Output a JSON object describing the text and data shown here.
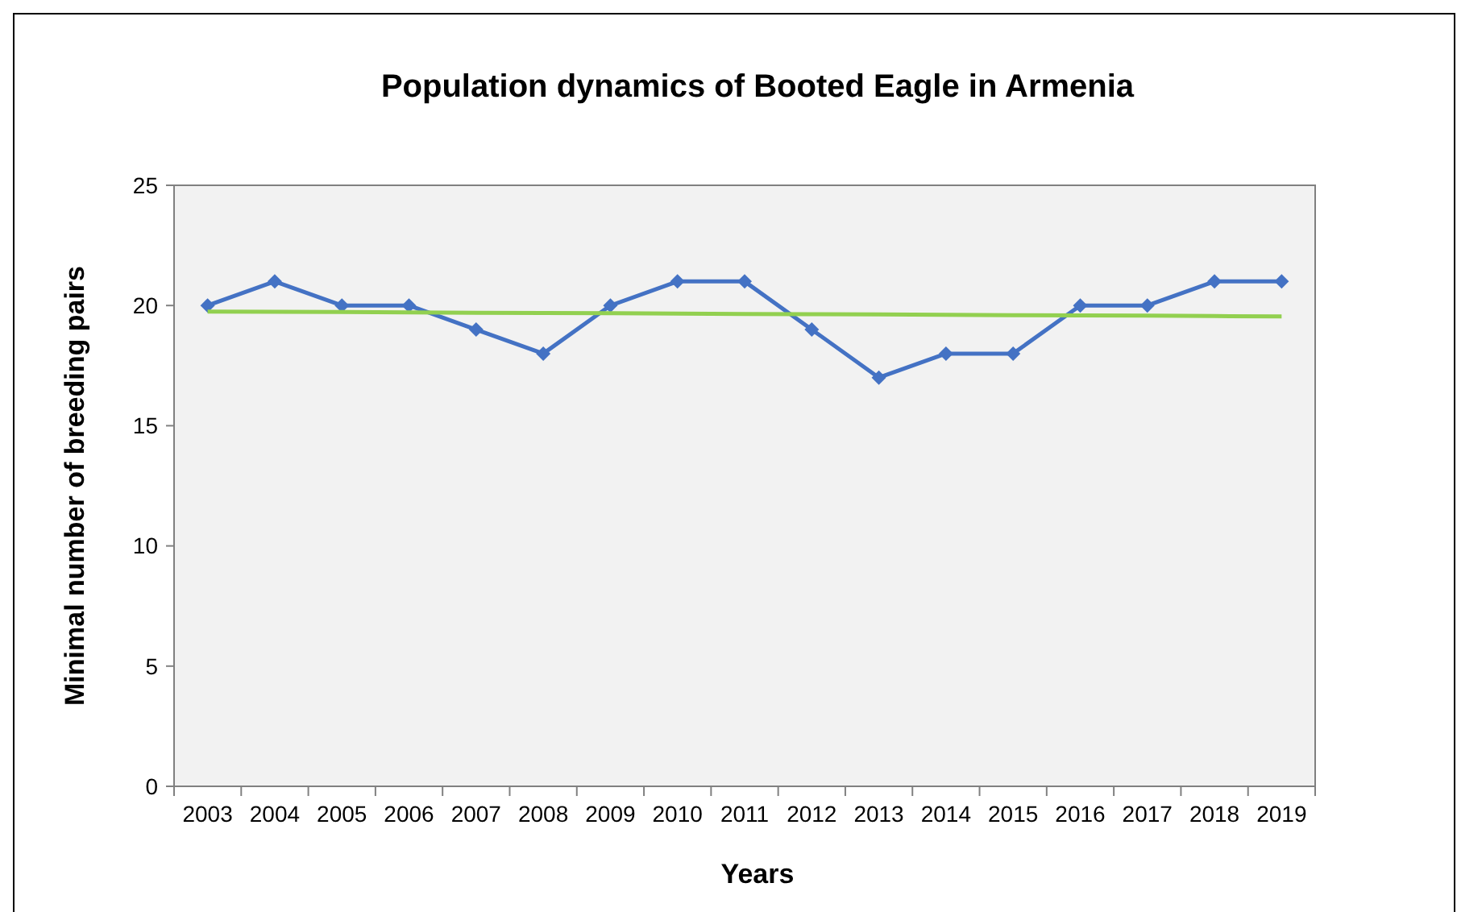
{
  "chart_data": {
    "type": "line",
    "title": "Population dynamics of Booted Eagle in Armenia",
    "xlabel": "Years",
    "ylabel": "Minimal number of breeding pairs",
    "categories": [
      "2003",
      "2004",
      "2005",
      "2006",
      "2007",
      "2008",
      "2009",
      "2010",
      "2011",
      "2012",
      "2013",
      "2014",
      "2015",
      "2016",
      "2017",
      "2018",
      "2019"
    ],
    "series": [
      {
        "color": "#4472c4",
        "values": [
          20,
          21,
          20,
          20,
          19,
          18,
          20,
          21,
          21,
          19,
          17,
          18,
          18,
          20,
          20,
          21,
          21
        ],
        "marker": "diamond"
      },
      {
        "type": "line",
        "color": "#92d050",
        "values": [
          19.75,
          19.74,
          19.73,
          19.71,
          19.7,
          19.69,
          19.68,
          19.66,
          19.65,
          19.64,
          19.63,
          19.61,
          19.6,
          19.59,
          19.58,
          19.56,
          19.55
        ],
        "marker": "none"
      }
    ],
    "ylim": [
      0,
      25
    ],
    "yticks": [
      0,
      5,
      10,
      15,
      20,
      25
    ],
    "grid": false,
    "line_style": "solid"
  }
}
